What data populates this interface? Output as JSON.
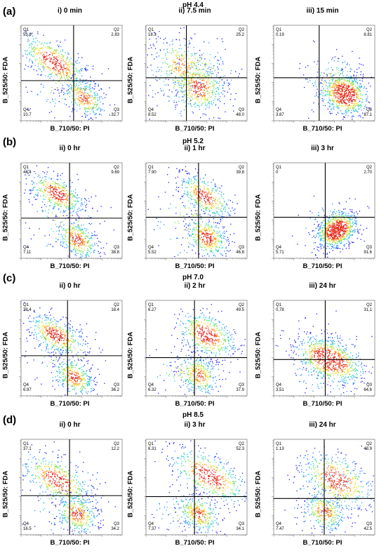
{
  "panels": [
    {
      "letter": "(a)",
      "ph": "pH 4.4",
      "plots": [
        {
          "title": "i) 0 min",
          "q": {
            "Q1": "53.8",
            "Q2": "2.83",
            "Q3": "32.7",
            "Q4": "10.7"
          }
        },
        {
          "title": "ii) 7.5 min",
          "q": {
            "Q1": "18.3",
            "Q2": "25.2",
            "Q3": "48.0",
            "Q4": "8.52"
          }
        },
        {
          "title": "iii) 15 min",
          "q": {
            "Q1": "0.19",
            "Q2": "8.81",
            "Q3": "87.1",
            "Q4": "3.87"
          }
        }
      ]
    },
    {
      "letter": "(b)",
      "ph": "pH 5.2",
      "plots": [
        {
          "title": "ii) 0 hr",
          "q": {
            "Q1": "44.4",
            "Q2": "9.69",
            "Q3": "38.8",
            "Q4": "7.11"
          }
        },
        {
          "title": "ii) 1 hr",
          "q": {
            "Q1": "7.90",
            "Q2": "39.8",
            "Q3": "46.8",
            "Q4": "5.52"
          }
        },
        {
          "title": "iii) 3 hr",
          "q": {
            "Q1": "0",
            "Q2": "2.70",
            "Q3": "91.6",
            "Q4": "5.71"
          }
        }
      ]
    },
    {
      "letter": "(c)",
      "ph": "pH 7.0",
      "plots": [
        {
          "title": "ii) 0 hr",
          "q": {
            "Q1": "38.4",
            "Q2": "18.4",
            "Q3": "36.2",
            "Q4": "6.97"
          }
        },
        {
          "title": "ii) 2 hr",
          "q": {
            "Q1": "6.27",
            "Q2": "49.5",
            "Q3": "37.9",
            "Q4": "6.32"
          }
        },
        {
          "title": "iii) 24 hr",
          "q": {
            "Q1": "0,78",
            "Q2": "31,1",
            "Q3": "64,6",
            "Q4": "3,51"
          }
        }
      ]
    },
    {
      "letter": "(d)",
      "ph": "pH 8.5",
      "plots": [
        {
          "title": "ii) 0 hr",
          "q": {
            "Q1": "37.1",
            "Q2": "12.2",
            "Q3": "34.2",
            "Q4": "16.5"
          }
        },
        {
          "title": "ii) 3 hr",
          "q": {
            "Q1": "6.31",
            "Q2": "52.3",
            "Q3": "34.1",
            "Q4": "7.37"
          }
        },
        {
          "title": "iii) 24 hr",
          "q": {
            "Q1": "1.13",
            "Q2": "48.9",
            "Q3": "42.5",
            "Q4": "7.47"
          }
        }
      ]
    }
  ],
  "quadrant_names": {
    "Q1": "Q1",
    "Q2": "Q2",
    "Q3": "Q3",
    "Q4": "Q4"
  },
  "axes": {
    "xlabel": "B_710/50: PI",
    "ylabel": "B_525/50: FDA",
    "scale": "log"
  },
  "chart_data": {
    "type": "scatter",
    "description_series": [
      {
        "panel": "(a) pH 4.4",
        "times": [
          "0 min",
          "7.5 min",
          "15 min"
        ],
        "Q1": [
          53.8,
          18.3,
          0.19
        ],
        "Q2": [
          2.83,
          25.2,
          8.81
        ],
        "Q3": [
          32.7,
          48.0,
          87.1
        ],
        "Q4": [
          10.7,
          8.52,
          3.87
        ]
      },
      {
        "panel": "(b) pH 5.2",
        "times": [
          "0 hr",
          "1 hr",
          "3 hr"
        ],
        "Q1": [
          44.4,
          7.9,
          0
        ],
        "Q2": [
          9.69,
          39.8,
          2.7
        ],
        "Q3": [
          38.8,
          46.8,
          91.6
        ],
        "Q4": [
          7.11,
          5.52,
          5.71
        ]
      },
      {
        "panel": "(c) pH 7.0",
        "times": [
          "0 hr",
          "2 hr",
          "24 hr"
        ],
        "Q1": [
          38.4,
          6.27,
          0.78
        ],
        "Q2": [
          18.4,
          49.5,
          31.1
        ],
        "Q3": [
          36.2,
          37.9,
          64.6
        ],
        "Q4": [
          6.97,
          6.32,
          3.51
        ]
      },
      {
        "panel": "(d) pH 8.5",
        "times": [
          "0 hr",
          "3 hr",
          "24 hr"
        ],
        "Q1": [
          37.1,
          6.31,
          1.13
        ],
        "Q2": [
          12.2,
          52.3,
          48.9
        ],
        "Q3": [
          34.2,
          34.1,
          42.5
        ],
        "Q4": [
          16.5,
          7.37,
          7.47
        ]
      }
    ],
    "xlabel": "B_710/50: PI",
    "ylabel": "B_525/50: FDA",
    "xscale": "log",
    "yscale": "log",
    "colormap": [
      "#1a1aff",
      "#2e8bff",
      "#22cfcf",
      "#7fe04a",
      "#f4e23a",
      "#ff8a1a",
      "#e8261a"
    ]
  }
}
